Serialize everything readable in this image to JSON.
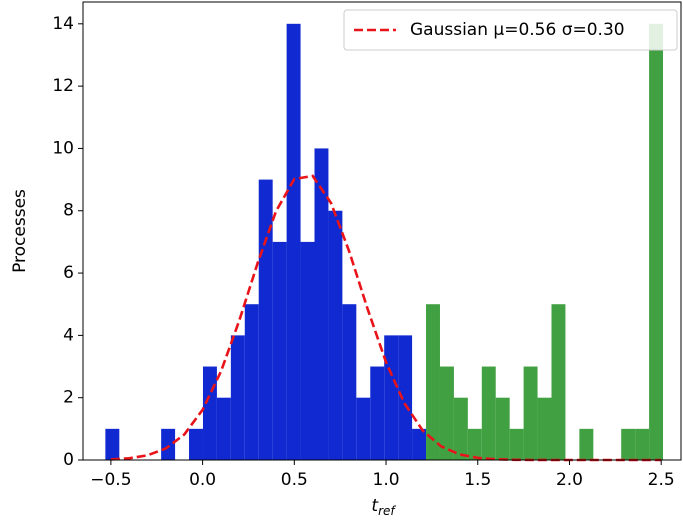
{
  "chart_data": {
    "type": "histogram",
    "xlabel": "t",
    "xlabel_sub": "ref",
    "ylabel": "Processes",
    "bins": [
      -0.53,
      -0.454,
      -0.378,
      -0.302,
      -0.226,
      -0.15,
      -0.074,
      0.002,
      0.078,
      0.154,
      0.23,
      0.306,
      0.382,
      0.458,
      0.534,
      0.61,
      0.686,
      0.762,
      0.838,
      0.914,
      0.99,
      1.066,
      1.142,
      1.218,
      1.294,
      1.37,
      1.446,
      1.522,
      1.598,
      1.674,
      1.75,
      1.826,
      1.902,
      1.978,
      2.054,
      2.13,
      2.206,
      2.282,
      2.358,
      2.434,
      2.51
    ],
    "series": [
      {
        "color": "#1029d0",
        "values": [
          1,
          0,
          0,
          0,
          1,
          0,
          1,
          3,
          2,
          4,
          5,
          9,
          7,
          14,
          7,
          10,
          8,
          5,
          2,
          3,
          4,
          4,
          1,
          0,
          0,
          0,
          0,
          0,
          0,
          0,
          0,
          0,
          0,
          0,
          0,
          0,
          0,
          0,
          0,
          0
        ]
      },
      {
        "color": "#41a041",
        "values": [
          0,
          0,
          0,
          0,
          0,
          0,
          0,
          0,
          0,
          0,
          0,
          0,
          0,
          0,
          0,
          0,
          0,
          0,
          0,
          0,
          0,
          0,
          0,
          5,
          3,
          2,
          1,
          3,
          2,
          1,
          3,
          2,
          5,
          0,
          1,
          0,
          0,
          1,
          1,
          14
        ]
      }
    ],
    "overlay": {
      "type": "line",
      "name": "Gaussian μ=0.56 σ=0.30",
      "color": "#e8141a",
      "style": "dashed",
      "x": [
        -0.5,
        -0.4,
        -0.3,
        -0.2,
        -0.1,
        0.0,
        0.1,
        0.2,
        0.3,
        0.4,
        0.5,
        0.6,
        0.7,
        0.8,
        0.9,
        1.0,
        1.1,
        1.2,
        1.3,
        1.4,
        1.5,
        1.6,
        1.7,
        1.8,
        1.9,
        2.0,
        2.1,
        2.2,
        2.3,
        2.4,
        2.5
      ],
      "values": [
        0.018,
        0.055,
        0.151,
        0.372,
        0.818,
        1.612,
        2.84,
        4.478,
        6.32,
        7.98,
        9.018,
        9.118,
        8.25,
        6.68,
        4.84,
        3.138,
        1.821,
        0.945,
        0.439,
        0.182,
        0.068,
        0.023,
        0.007,
        0.002,
        0,
        0,
        0,
        0,
        0,
        0,
        0
      ]
    },
    "legend": "upper right",
    "xlim": [
      -0.652,
      2.608
    ],
    "ylim": [
      0,
      14.7
    ],
    "xticks": [
      {
        "value": -0.5,
        "label": "−0.5"
      },
      {
        "value": 0,
        "label": "0.0"
      },
      0.5,
      {
        "value": 1,
        "label": "1.0"
      },
      1.5,
      {
        "value": 2,
        "label": "2.0"
      },
      2.5
    ],
    "yticks": [
      0,
      2,
      4,
      6,
      8,
      10,
      12,
      14
    ]
  }
}
